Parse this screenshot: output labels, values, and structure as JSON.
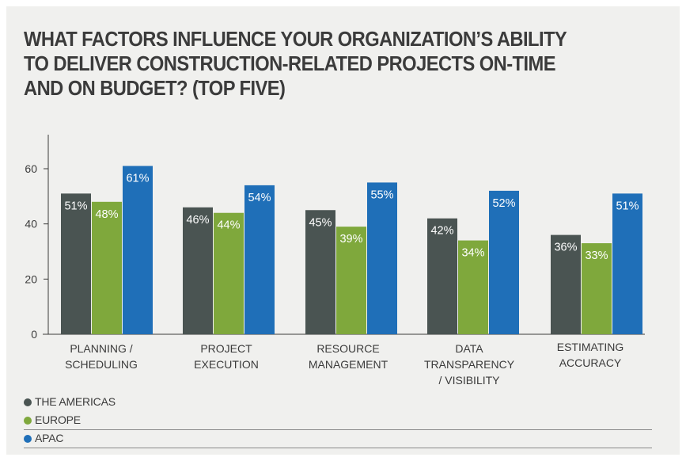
{
  "title_lines": [
    "WHAT FACTORS INFLUENCE YOUR ORGANIZATION’S ABILITY",
    "TO DELIVER CONSTRUCTION-RELATED PROJECTS ON-TIME",
    "AND ON BUDGET? (TOP FIVE)"
  ],
  "chart_data": {
    "type": "bar",
    "title": "WHAT FACTORS INFLUENCE YOUR ORGANIZATION’S ABILITY TO DELIVER CONSTRUCTION-RELATED PROJECTS ON-TIME AND ON BUDGET? (TOP FIVE)",
    "categories": [
      [
        "PLANNING /",
        "SCHEDULING"
      ],
      [
        "PROJECT",
        "EXECUTION"
      ],
      [
        "RESOURCE",
        "MANAGEMENT"
      ],
      [
        "DATA",
        "TRANSPARENCY",
        "/ VISIBILITY"
      ],
      [
        "ESTIMATING",
        "ACCURACY"
      ]
    ],
    "series": [
      {
        "name": "THE AMERICAS",
        "color": "#4a5452",
        "values": [
          51,
          46,
          45,
          42,
          36
        ],
        "labels": [
          "51%",
          "46%",
          "45%",
          "42%",
          "36%"
        ]
      },
      {
        "name": "EUROPE",
        "color": "#7fa83c",
        "values": [
          48,
          44,
          39,
          34,
          33
        ],
        "labels": [
          "48%",
          "44%",
          "39%",
          "34%",
          "33%"
        ]
      },
      {
        "name": "APAC",
        "color": "#1f6fb8",
        "values": [
          61,
          54,
          55,
          52,
          51
        ],
        "labels": [
          "61%",
          "54%",
          "55%",
          "52%",
          "51%"
        ]
      }
    ],
    "yticks": [
      0,
      20,
      40,
      60
    ],
    "ylim": [
      0,
      72
    ],
    "xlabel": "",
    "ylabel": "",
    "grid": false,
    "legend_position": "bottom-left"
  }
}
